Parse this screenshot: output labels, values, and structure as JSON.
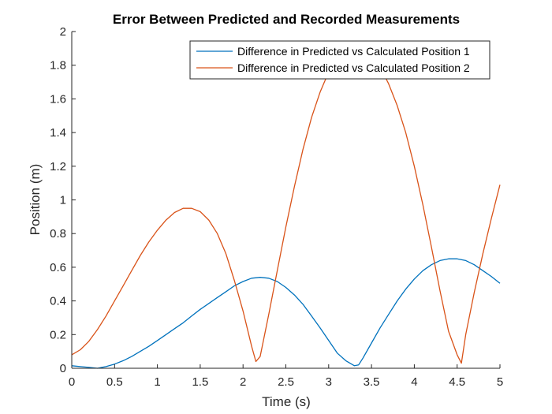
{
  "chart_data": {
    "type": "line",
    "title": "Error Between Predicted and Recorded Measurements",
    "xlabel": "Time (s)",
    "ylabel": "Position (m)",
    "xlim": [
      0,
      5
    ],
    "ylim": [
      0,
      2
    ],
    "xticks": [
      0,
      0.5,
      1,
      1.5,
      2,
      2.5,
      3,
      3.5,
      4,
      4.5,
      5
    ],
    "xtick_labels": [
      "0",
      "0.5",
      "1",
      "1.5",
      "2",
      "2.5",
      "3",
      "3.5",
      "4",
      "4.5",
      "5"
    ],
    "yticks": [
      0,
      0.2,
      0.4,
      0.6,
      0.8,
      1,
      1.2,
      1.4,
      1.6,
      1.8,
      2
    ],
    "ytick_labels": [
      "0",
      "0.2",
      "0.4",
      "0.6",
      "0.8",
      "1",
      "1.2",
      "1.4",
      "1.6",
      "1.8",
      "2"
    ],
    "grid": false,
    "legend_position": "top-right",
    "series": [
      {
        "name": "Difference in Predicted vs Calculated Position 1",
        "color": "#0072BD",
        "x": [
          0,
          0.1,
          0.2,
          0.3,
          0.4,
          0.5,
          0.6,
          0.7,
          0.8,
          0.9,
          1.0,
          1.1,
          1.2,
          1.3,
          1.4,
          1.5,
          1.6,
          1.7,
          1.8,
          1.9,
          2.0,
          2.1,
          2.2,
          2.3,
          2.4,
          2.5,
          2.6,
          2.7,
          2.8,
          2.9,
          3.0,
          3.1,
          3.2,
          3.3,
          3.35,
          3.4,
          3.5,
          3.6,
          3.7,
          3.8,
          3.9,
          4.0,
          4.1,
          4.2,
          4.3,
          4.4,
          4.5,
          4.6,
          4.7,
          4.8,
          4.9,
          5.0
        ],
        "y": [
          0.015,
          0.01,
          0.005,
          0.0,
          0.01,
          0.025,
          0.045,
          0.07,
          0.1,
          0.13,
          0.165,
          0.2,
          0.235,
          0.27,
          0.31,
          0.35,
          0.385,
          0.42,
          0.455,
          0.49,
          0.515,
          0.535,
          0.54,
          0.535,
          0.515,
          0.48,
          0.435,
          0.38,
          0.31,
          0.24,
          0.165,
          0.09,
          0.045,
          0.015,
          0.02,
          0.06,
          0.15,
          0.24,
          0.32,
          0.4,
          0.47,
          0.53,
          0.58,
          0.615,
          0.64,
          0.65,
          0.65,
          0.64,
          0.615,
          0.58,
          0.545,
          0.505
        ]
      },
      {
        "name": "Difference in Predicted vs Calculated Position 2",
        "color": "#D95319",
        "x": [
          0,
          0.1,
          0.2,
          0.3,
          0.4,
          0.5,
          0.6,
          0.7,
          0.8,
          0.9,
          1.0,
          1.1,
          1.2,
          1.3,
          1.4,
          1.5,
          1.6,
          1.7,
          1.8,
          1.9,
          2.0,
          2.1,
          2.15,
          2.2,
          2.3,
          2.4,
          2.5,
          2.6,
          2.7,
          2.8,
          2.9,
          3.0,
          3.1,
          3.2,
          3.3,
          3.4,
          3.5,
          3.6,
          3.7,
          3.8,
          3.9,
          4.0,
          4.1,
          4.2,
          4.3,
          4.4,
          4.5,
          4.55,
          4.6,
          4.7,
          4.8,
          4.9,
          5.0
        ],
        "y": [
          0.08,
          0.11,
          0.16,
          0.23,
          0.31,
          0.4,
          0.49,
          0.58,
          0.67,
          0.75,
          0.82,
          0.88,
          0.925,
          0.95,
          0.95,
          0.93,
          0.88,
          0.8,
          0.68,
          0.52,
          0.34,
          0.13,
          0.04,
          0.07,
          0.32,
          0.58,
          0.84,
          1.08,
          1.3,
          1.49,
          1.64,
          1.76,
          1.84,
          1.88,
          1.89,
          1.88,
          1.85,
          1.79,
          1.69,
          1.56,
          1.4,
          1.2,
          0.97,
          0.72,
          0.46,
          0.22,
          0.08,
          0.03,
          0.2,
          0.45,
          0.68,
          0.89,
          1.09
        ]
      }
    ]
  }
}
